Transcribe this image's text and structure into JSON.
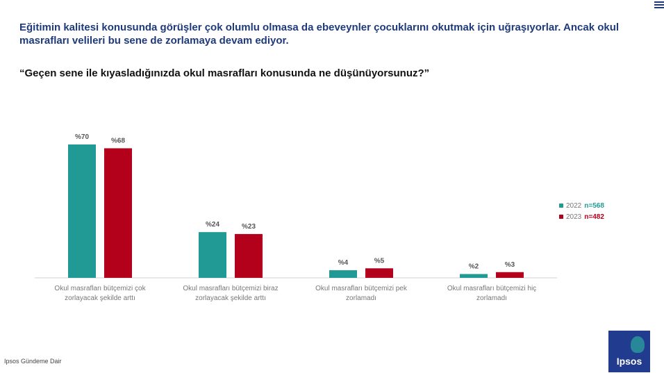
{
  "headline": "Eğitimin kalitesi konusunda görüşler çok olumlu olmasa da ebeveynler çocuklarını okutmak için uğraşıyorlar. Ancak okul masrafları velileri bu sene de zorlamaya devam ediyor.",
  "question": "“Geçen sene ile kıyasladığınızda okul masrafları konusunda ne düşünüyorsunuz?”",
  "footer": "Ipsos Gündeme Dair",
  "logo_text": "Ipsos",
  "legend": [
    {
      "year": "2022",
      "n": "n=568",
      "color": "#219a95"
    },
    {
      "year": "2023",
      "n": "n=482",
      "color": "#b3001b"
    }
  ],
  "chart_data": {
    "type": "bar",
    "categories": [
      "Okul masrafları bütçemizi çok zorlayacak şekilde arttı",
      "Okul masrafları bütçemizi biraz zorlayacak şekilde arttı",
      "Okul masrafları bütçemizi pek zorlamadı",
      "Okul masrafları bütçemizi hiç zorlamadı"
    ],
    "series": [
      {
        "name": "2022",
        "values": [
          70,
          24,
          4,
          2
        ],
        "labels": [
          "%70",
          "%24",
          "%4",
          "%2"
        ],
        "color": "#219a95"
      },
      {
        "name": "2023",
        "values": [
          68,
          23,
          5,
          3
        ],
        "labels": [
          "%68",
          "%23",
          "%5",
          "%3"
        ],
        "color": "#b3001b"
      }
    ],
    "ylim": [
      0,
      70
    ],
    "grid": false,
    "legend_position": "right"
  }
}
